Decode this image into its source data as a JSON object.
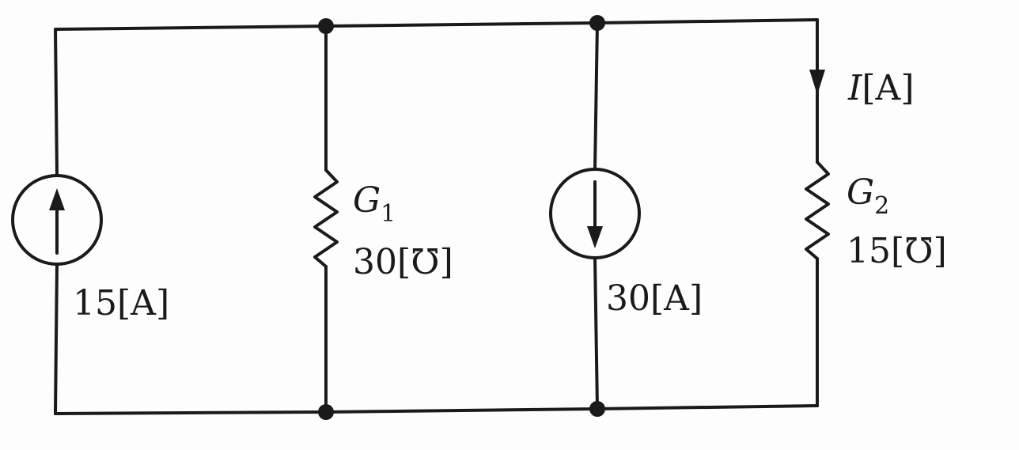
{
  "source1": {
    "value": "15",
    "unit": "[A]"
  },
  "g1": {
    "symbol": "G",
    "subscript": "1",
    "value": "30",
    "unit": "[℧]"
  },
  "source2": {
    "value": "30",
    "unit": "[A]"
  },
  "g2": {
    "symbol": "G",
    "subscript": "2",
    "value": "15",
    "unit": "[℧]"
  },
  "current": {
    "symbol": "I",
    "unit": "[A]"
  }
}
